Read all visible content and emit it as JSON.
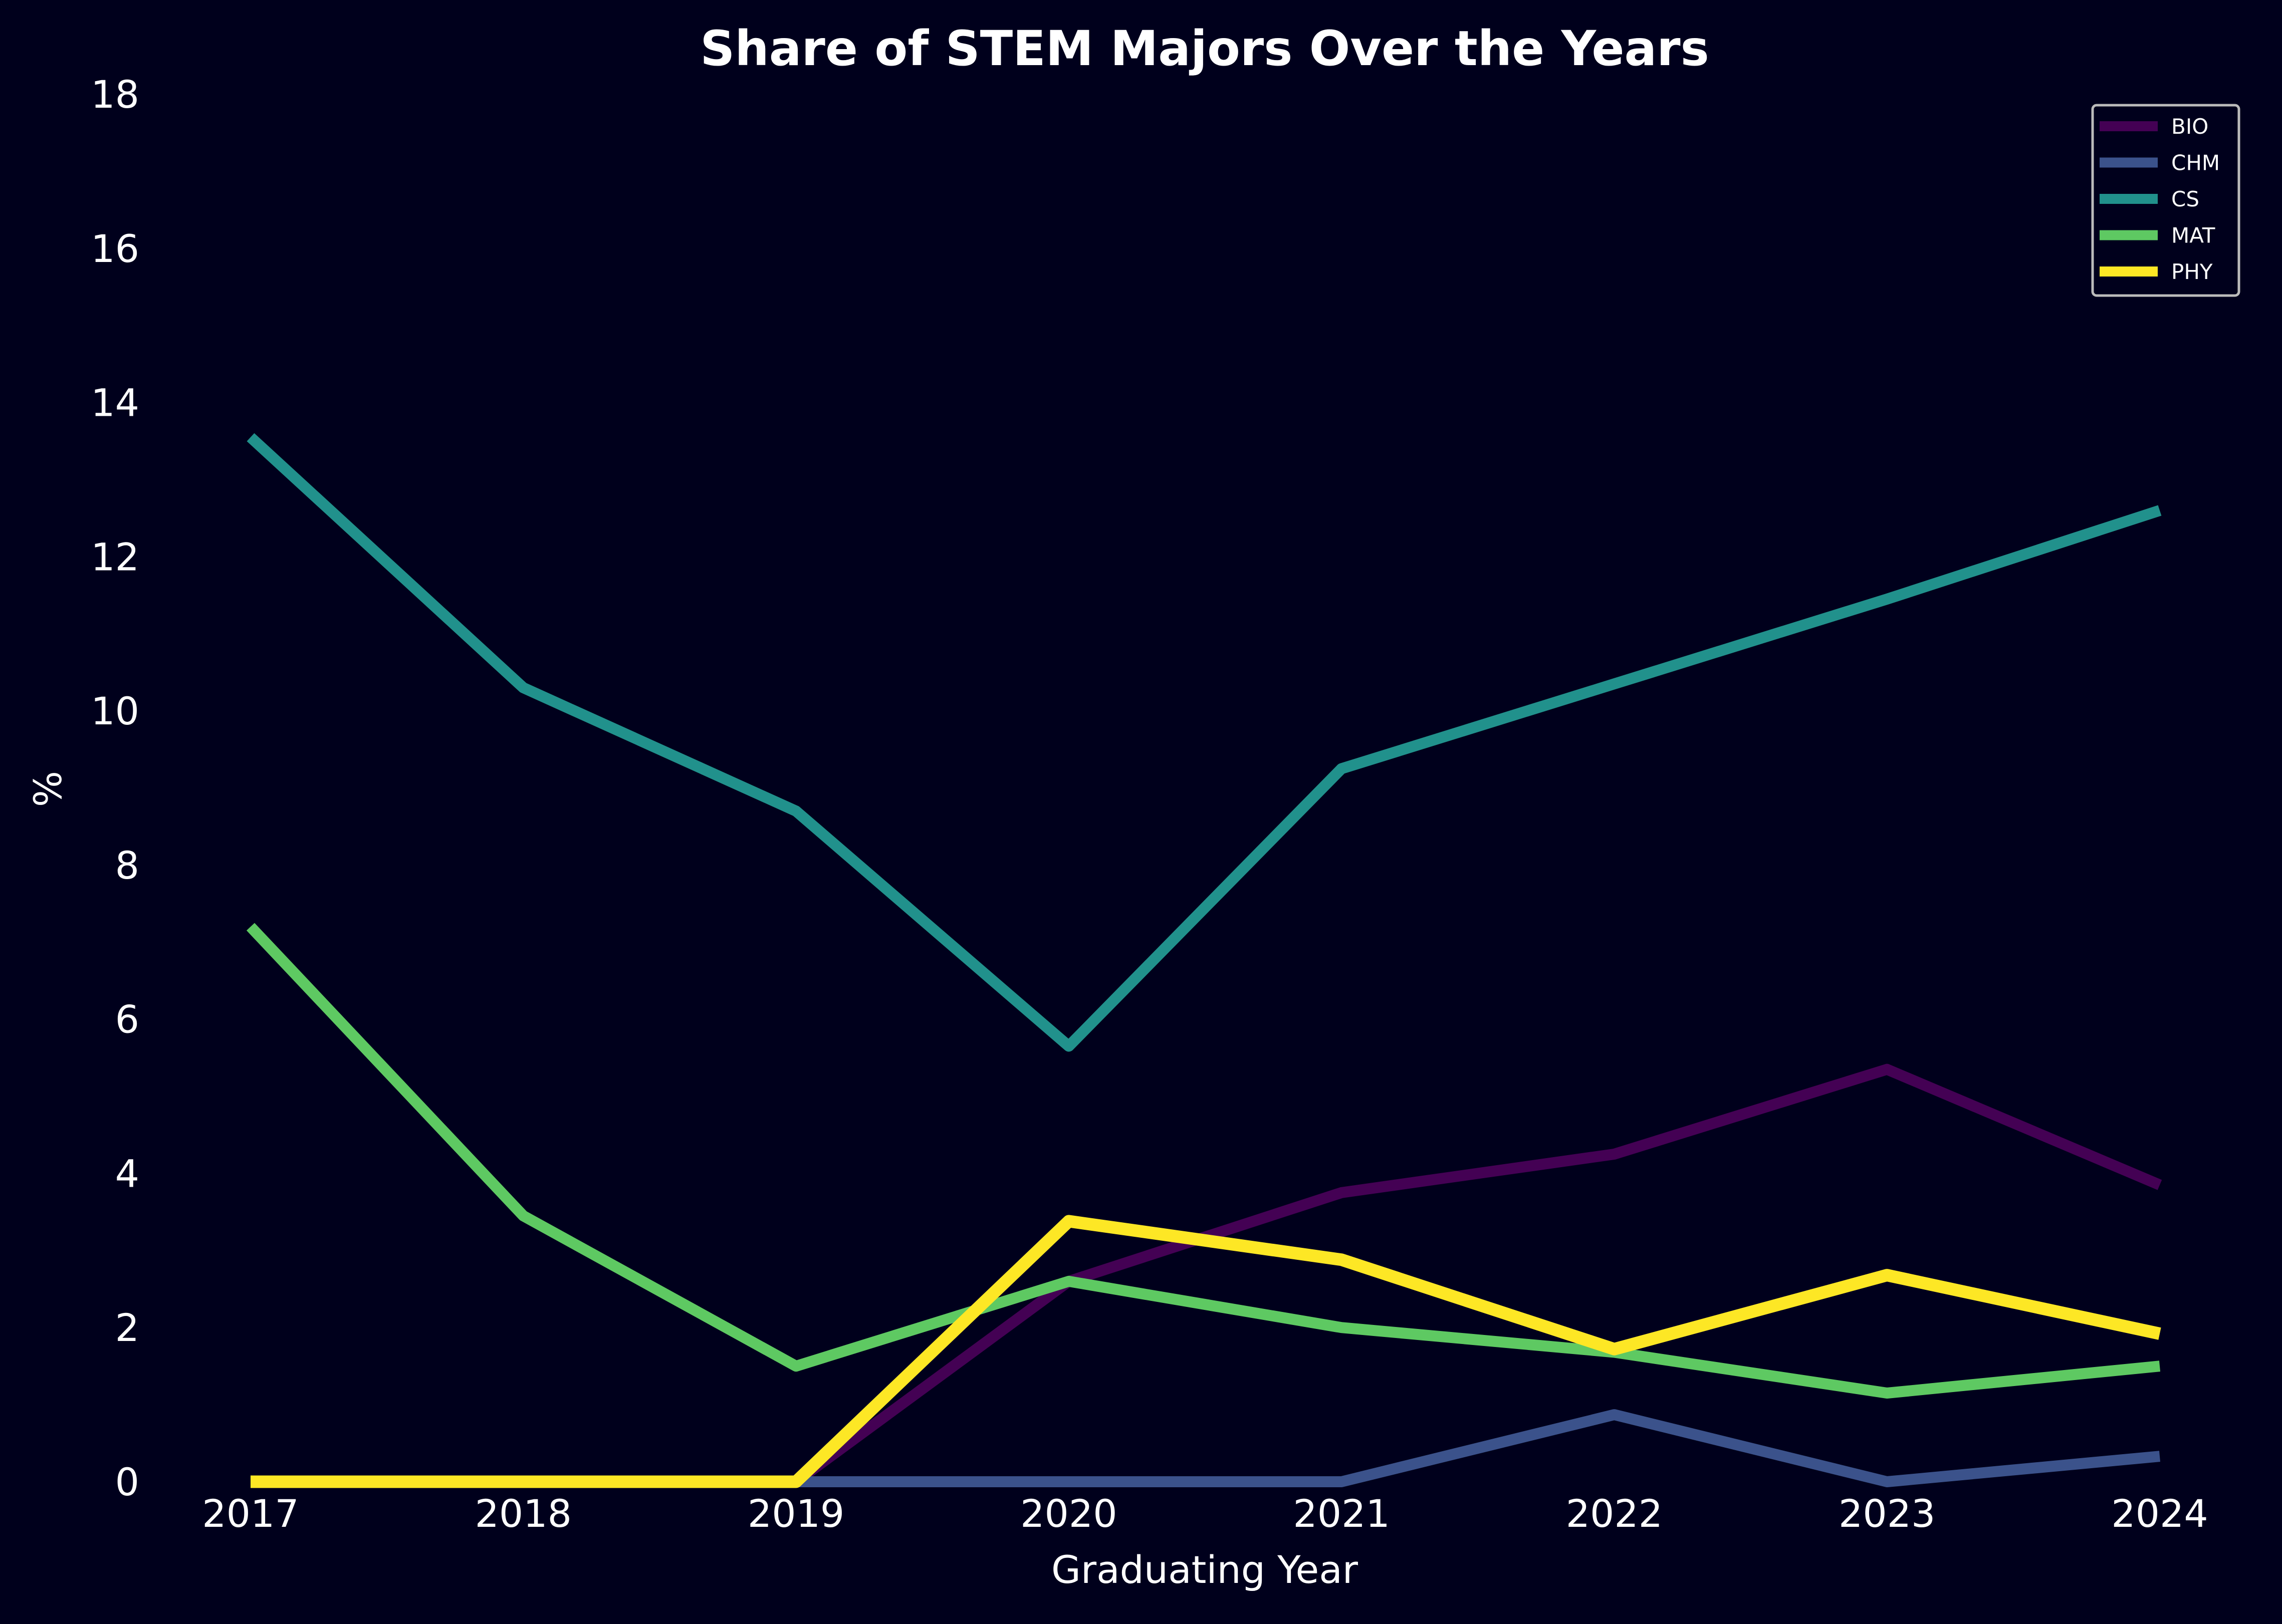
{
  "chart_data": {
    "type": "line",
    "title": "Share of STEM Majors Over the Years",
    "xlabel": "Graduating Year",
    "ylabel": "%",
    "x": [
      2017,
      2018,
      2019,
      2020,
      2021,
      2022,
      2023,
      2024
    ],
    "ylim": [
      0,
      18
    ],
    "yticks": [
      0,
      2,
      4,
      6,
      8,
      10,
      12,
      14,
      16,
      18
    ],
    "grid": false,
    "legend_position": "top-right",
    "background": "#00001c",
    "series": [
      {
        "name": "BIO",
        "color": "#440154",
        "values": [
          0,
          0,
          0,
          2.6,
          3.75,
          4.25,
          5.35,
          3.85
        ]
      },
      {
        "name": "CHM",
        "color": "#3b528b",
        "values": [
          0,
          0,
          0,
          0,
          0,
          0.87,
          0,
          0.33
        ]
      },
      {
        "name": "CS",
        "color": "#21918c",
        "values": [
          13.55,
          10.3,
          8.7,
          5.65,
          9.25,
          10.35,
          11.45,
          12.6
        ]
      },
      {
        "name": "MAT",
        "color": "#5ec962",
        "values": [
          7.2,
          3.45,
          1.5,
          2.6,
          2.0,
          1.68,
          1.15,
          1.5
        ]
      },
      {
        "name": "PHY",
        "color": "#fde725",
        "values": [
          0,
          0,
          0,
          3.38,
          2.88,
          1.72,
          2.68,
          1.92
        ]
      }
    ]
  }
}
